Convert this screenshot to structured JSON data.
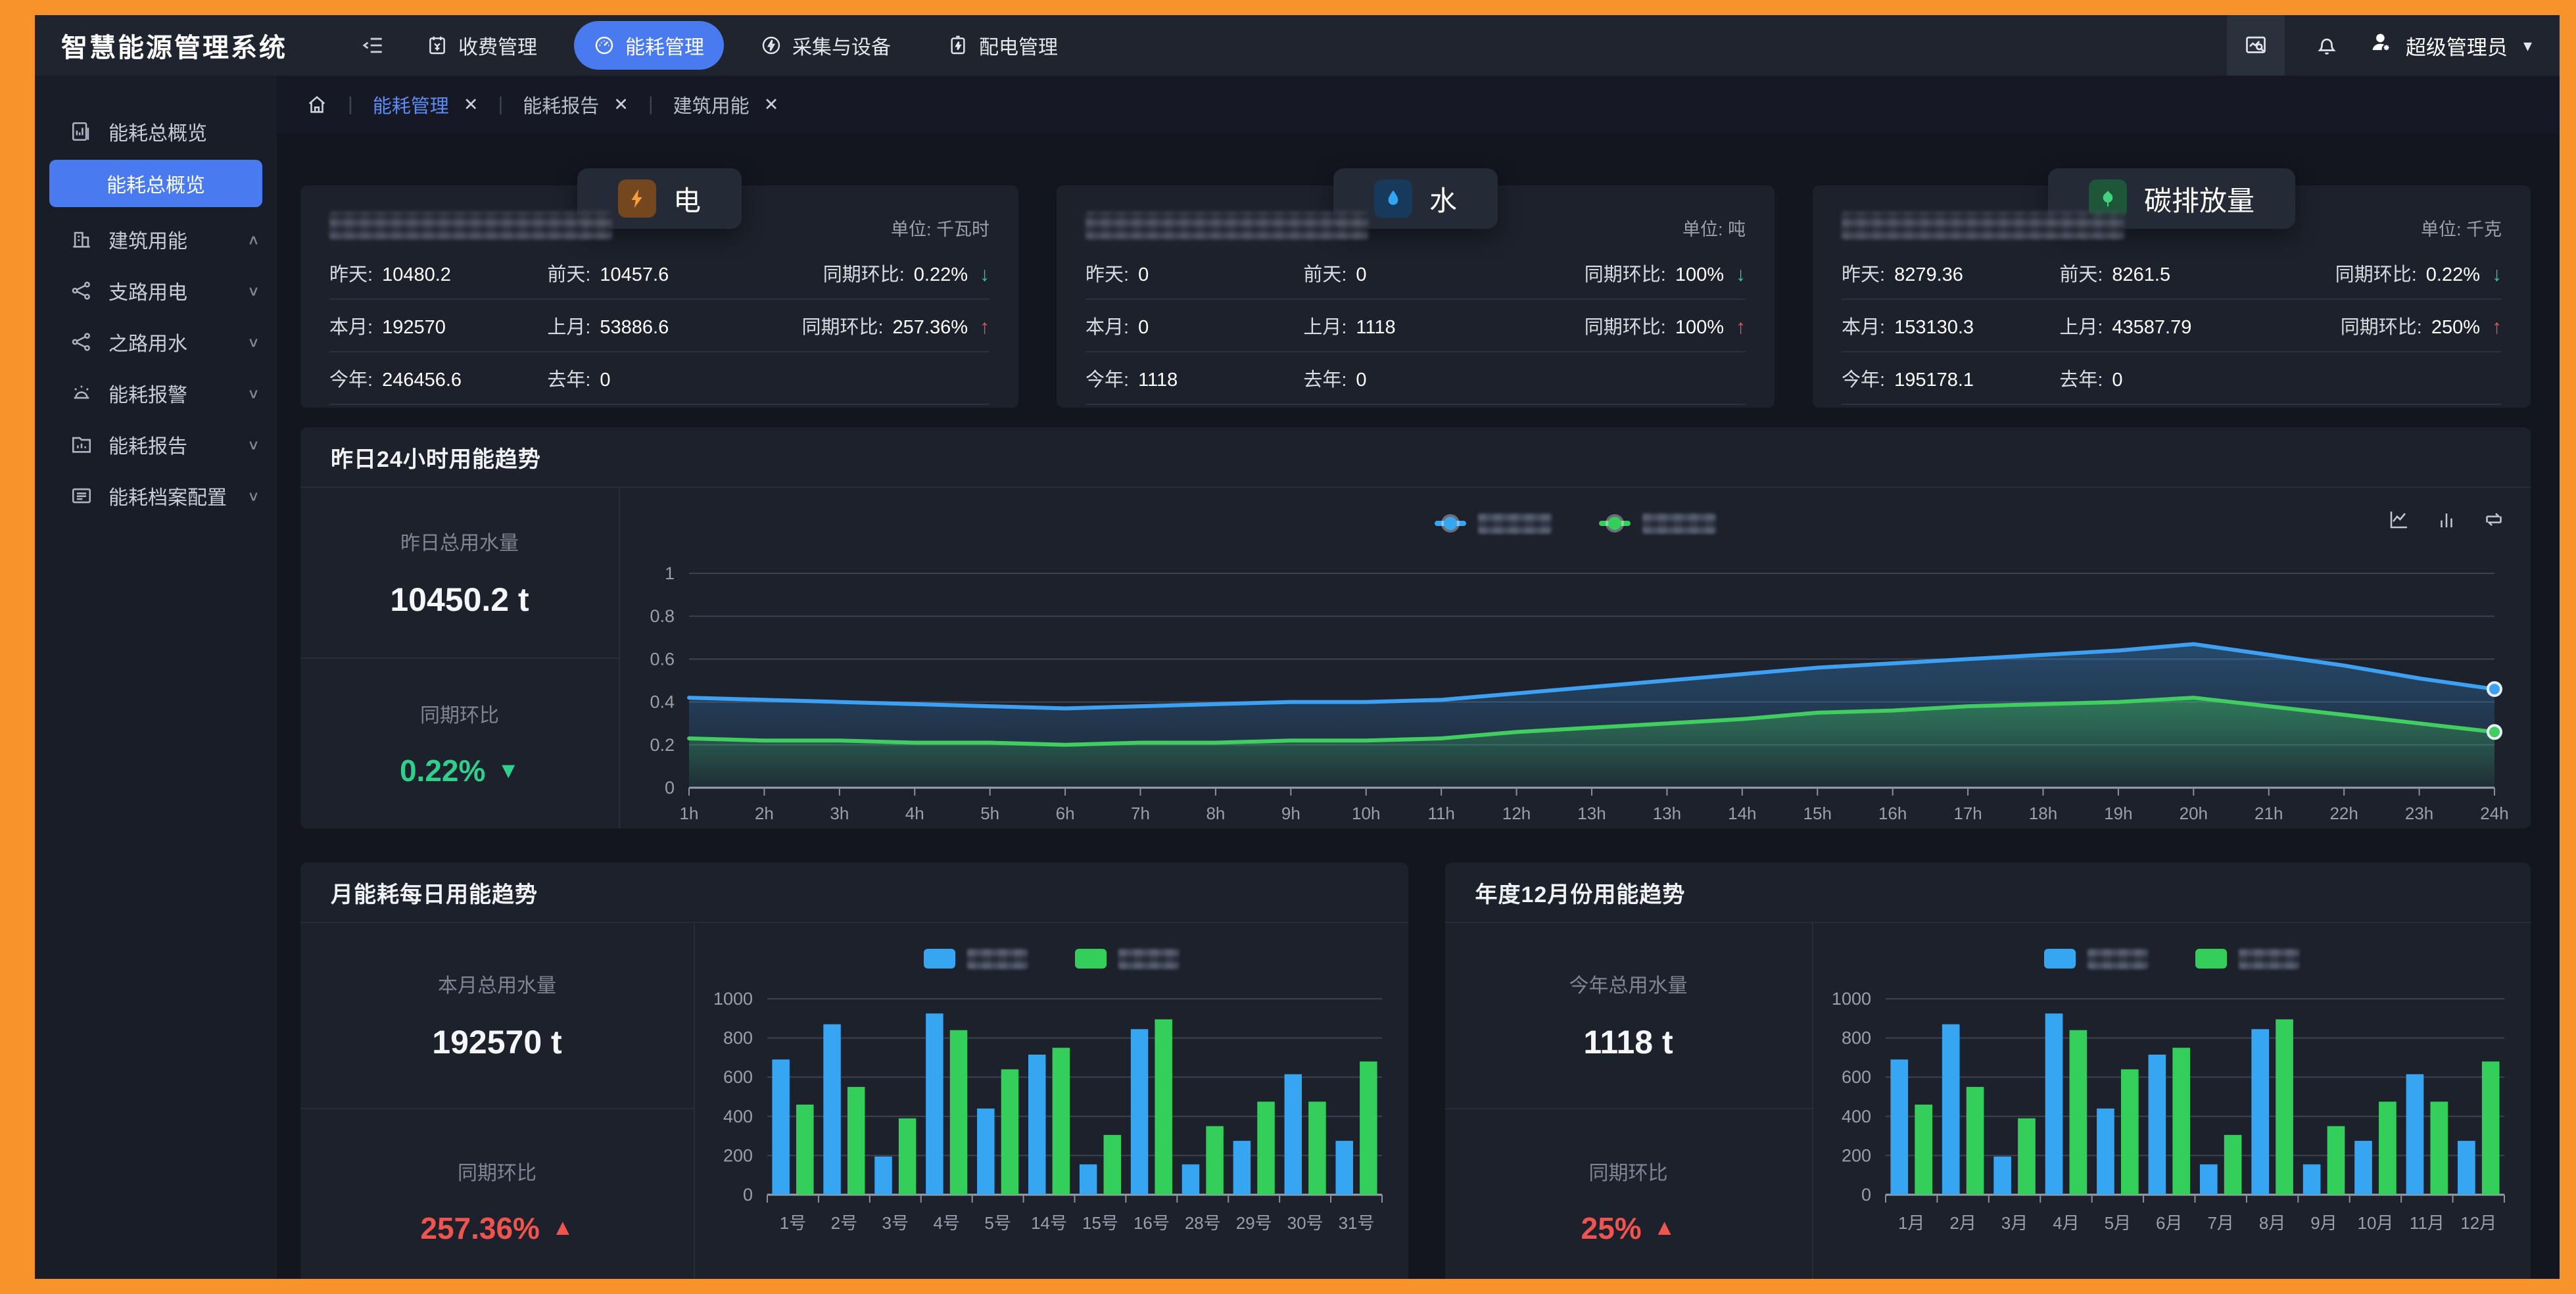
{
  "app": {
    "title": "智慧能源管理系统"
  },
  "topnav": {
    "items": [
      {
        "label": "收费管理",
        "icon": "fee-calendar-icon",
        "active": false
      },
      {
        "label": "能耗管理",
        "icon": "gauge-icon",
        "active": true
      },
      {
        "label": "采集与设备",
        "icon": "circle-bolt-icon",
        "active": false
      },
      {
        "label": "配电管理",
        "icon": "battery-bolt-icon",
        "active": false
      }
    ],
    "user_label": "超级管理员"
  },
  "sidebar": {
    "items": [
      {
        "label": "能耗总概览",
        "icon": "overview-chart-icon",
        "chevron": ""
      },
      {
        "label": "能耗总概览",
        "active": true,
        "type": "sub"
      },
      {
        "label": "建筑用能",
        "icon": "building-icon",
        "chevron": "up"
      },
      {
        "label": "支路用电",
        "icon": "branch-icon",
        "chevron": "down"
      },
      {
        "label": "之路用水",
        "icon": "branch-icon",
        "chevron": "down"
      },
      {
        "label": "能耗报警",
        "icon": "alarm-icon",
        "chevron": "down"
      },
      {
        "label": "能耗报告",
        "icon": "report-folder-icon",
        "chevron": "down"
      },
      {
        "label": "能耗档案配置",
        "icon": "archive-card-icon",
        "chevron": "down"
      }
    ]
  },
  "tabs": [
    {
      "label": "能耗管理",
      "active": true
    },
    {
      "label": "能耗报告",
      "active": false
    },
    {
      "label": "建筑用能",
      "active": false
    }
  ],
  "stat_cards": [
    {
      "tab_label": "电",
      "icon": "lightning-icon",
      "unit": "单位: 千瓦时",
      "title_redacted": true,
      "r1": [
        {
          "l": "昨天:",
          "v": "10480.2"
        },
        {
          "l": "前天:",
          "v": "10457.6"
        },
        {
          "l": "同期环比:",
          "v": "0.22%",
          "trend": "down"
        }
      ],
      "r2": [
        {
          "l": "本月:",
          "v": "192570"
        },
        {
          "l": "上月:",
          "v": "53886.6"
        },
        {
          "l": "同期环比:",
          "v": "257.36%",
          "trend": "up"
        }
      ],
      "r3": [
        {
          "l": "今年:",
          "v": "246456.6"
        },
        {
          "l": "去年:",
          "v": "0"
        }
      ]
    },
    {
      "tab_label": "水",
      "icon": "water-drop-icon",
      "unit": "单位: 吨",
      "title_redacted": true,
      "r1": [
        {
          "l": "昨天:",
          "v": "0"
        },
        {
          "l": "前天:",
          "v": "0"
        },
        {
          "l": "同期环比:",
          "v": "100%",
          "trend": "down"
        }
      ],
      "r2": [
        {
          "l": "本月:",
          "v": "0"
        },
        {
          "l": "上月:",
          "v": "1118"
        },
        {
          "l": "同期环比:",
          "v": "100%",
          "trend": "up"
        }
      ],
      "r3": [
        {
          "l": "今年:",
          "v": "1118"
        },
        {
          "l": "去年:",
          "v": "0"
        }
      ]
    },
    {
      "tab_label": "碳排放量",
      "icon": "leaf-icon",
      "unit": "单位: 千克",
      "title_redacted": true,
      "r1": [
        {
          "l": "昨天:",
          "v": "8279.36"
        },
        {
          "l": "前天:",
          "v": "8261.5"
        },
        {
          "l": "同期环比:",
          "v": "0.22%",
          "trend": "down"
        }
      ],
      "r2": [
        {
          "l": "本月:",
          "v": "153130.3"
        },
        {
          "l": "上月:",
          "v": "43587.79"
        },
        {
          "l": "同期环比:",
          "v": "250%",
          "trend": "up"
        }
      ],
      "r3": [
        {
          "l": "今年:",
          "v": "195178.1"
        },
        {
          "l": "去年:",
          "v": "0"
        }
      ]
    }
  ],
  "colors": {
    "accent_blue": "#4a7af0",
    "green": "#2fcf8c",
    "red": "#f0544f",
    "line_blue": "#3da0f2",
    "line_green": "#41cd5f",
    "bar_blue": "#36a6f3",
    "bar_green": "#34cf5b",
    "frame_orange": "#f8932c"
  },
  "chart_data": [
    {
      "id": "hourly",
      "type": "line",
      "title": "昨日24小时用能趋势",
      "legend_redacted": true,
      "grid": true,
      "legend_position": "top-center",
      "categories": [
        "1h",
        "2h",
        "3h",
        "4h",
        "5h",
        "6h",
        "7h",
        "8h",
        "9h",
        "10h",
        "11h",
        "12h",
        "13h",
        "13h",
        "14h",
        "15h",
        "16h",
        "17h",
        "18h",
        "19h",
        "20h",
        "21h",
        "22h",
        "23h",
        "24h"
      ],
      "ylim": [
        0,
        1
      ],
      "yticks": [
        0,
        0.2,
        0.4,
        0.6,
        0.8,
        1
      ],
      "series": [
        {
          "name": "",
          "color": "#3da0f2",
          "values": [
            0.42,
            0.41,
            0.4,
            0.39,
            0.38,
            0.37,
            0.38,
            0.39,
            0.4,
            0.4,
            0.41,
            0.44,
            0.47,
            0.5,
            0.53,
            0.56,
            0.58,
            0.6,
            0.62,
            0.64,
            0.67,
            0.62,
            0.57,
            0.51,
            0.46
          ]
        },
        {
          "name": "",
          "color": "#41cd5f",
          "values": [
            0.23,
            0.22,
            0.22,
            0.21,
            0.21,
            0.2,
            0.21,
            0.21,
            0.22,
            0.22,
            0.23,
            0.26,
            0.28,
            0.3,
            0.32,
            0.35,
            0.36,
            0.38,
            0.39,
            0.4,
            0.42,
            0.38,
            0.34,
            0.3,
            0.26
          ]
        }
      ],
      "stat": {
        "label": "昨日总用水量",
        "value": "10450.2 t",
        "ratio_label": "同期环比",
        "ratio": "0.22%",
        "trend": "down"
      }
    },
    {
      "id": "daily",
      "type": "bar",
      "title": "月能耗每日用能趋势",
      "legend_redacted": true,
      "grid": true,
      "legend_position": "top-center",
      "categories": [
        "1号",
        "2号",
        "3号",
        "4号",
        "5号",
        "14号",
        "15号",
        "16号",
        "28号",
        "29号",
        "30号",
        "31号"
      ],
      "ylim": [
        0,
        1000
      ],
      "yticks": [
        0,
        200,
        400,
        600,
        800,
        1000
      ],
      "series": [
        {
          "name": "",
          "color": "#36a6f3",
          "values": [
            690,
            870,
            195,
            925,
            440,
            715,
            155,
            845,
            155,
            275,
            615,
            275
          ]
        },
        {
          "name": "",
          "color": "#34cf5b",
          "values": [
            460,
            550,
            390,
            840,
            640,
            750,
            305,
            895,
            350,
            475,
            475,
            680
          ]
        }
      ],
      "stat": {
        "label": "本月总用水量",
        "value": "192570 t",
        "ratio_label": "同期环比",
        "ratio": "257.36%",
        "trend": "up"
      }
    },
    {
      "id": "monthly",
      "type": "bar",
      "title": "年度12月份用能趋势",
      "legend_redacted": true,
      "grid": true,
      "legend_position": "top-center",
      "categories": [
        "1月",
        "2月",
        "3月",
        "4月",
        "5月",
        "6月",
        "7月",
        "8月",
        "9月",
        "10月",
        "11月",
        "12月"
      ],
      "ylim": [
        0,
        1000
      ],
      "yticks": [
        0,
        200,
        400,
        600,
        800,
        1000
      ],
      "series": [
        {
          "name": "",
          "color": "#36a6f3",
          "values": [
            690,
            870,
            195,
            925,
            440,
            715,
            155,
            845,
            155,
            275,
            615,
            275
          ]
        },
        {
          "name": "",
          "color": "#34cf5b",
          "values": [
            460,
            550,
            390,
            840,
            640,
            750,
            305,
            895,
            350,
            475,
            475,
            680
          ]
        }
      ],
      "stat": {
        "label": "今年总用水量",
        "value": "1118 t",
        "ratio_label": "同期环比",
        "ratio": "25%",
        "trend": "up"
      }
    }
  ]
}
